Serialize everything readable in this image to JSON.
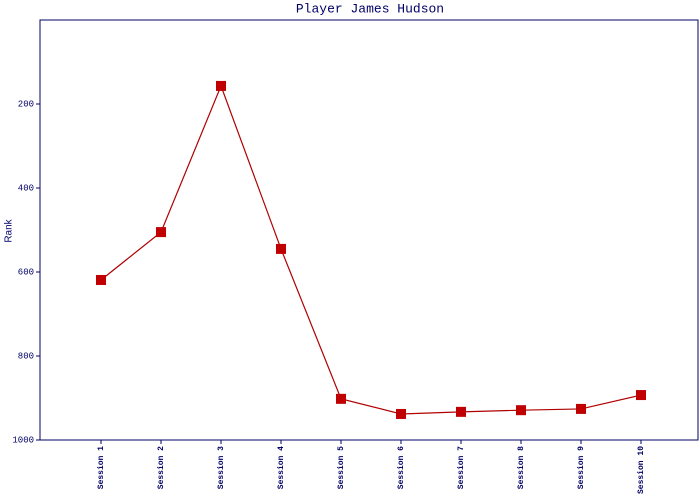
{
  "chart_data": {
    "type": "line",
    "title": "Player James Hudson",
    "y_label": "Rank",
    "categories": [
      "Session 1",
      "Session 2",
      "Session 3",
      "Session 4",
      "Session 5",
      "Session 6",
      "Session 7",
      "Session 8",
      "Session 9",
      "Session 10"
    ],
    "values": [
      619,
      505,
      157,
      545,
      902,
      938,
      933,
      929,
      926,
      893
    ],
    "color": "#b00000",
    "marker_color": "#c00000",
    "ylim": [
      1000,
      0
    ],
    "yticks": [
      200,
      400,
      600,
      800,
      1000
    ],
    "grid": false
  }
}
